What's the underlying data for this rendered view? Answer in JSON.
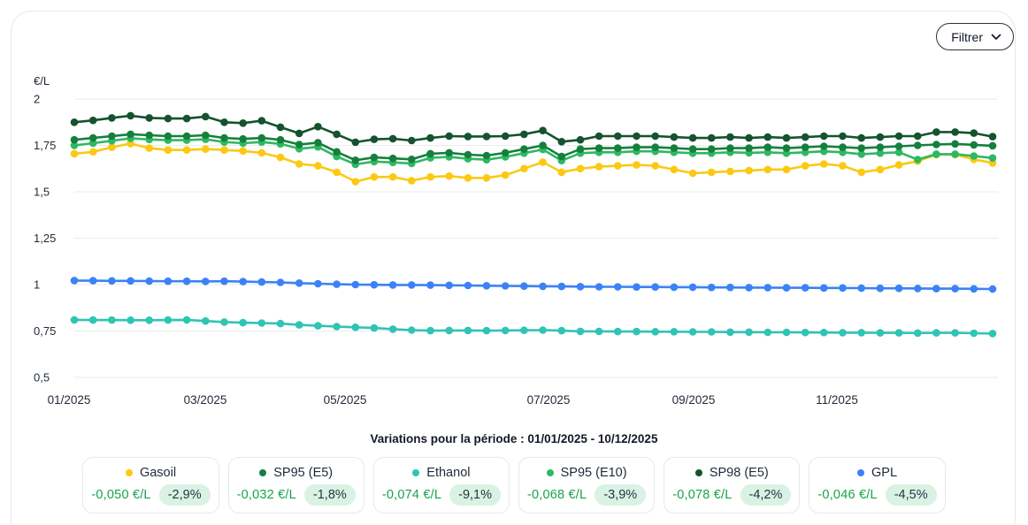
{
  "filter_button": {
    "label": "Filtrer"
  },
  "chart": {
    "y_axis_unit": "€/L",
    "y_ticks": [
      "2",
      "1,75",
      "1,5",
      "1,25",
      "1",
      "0,75",
      "0,5"
    ],
    "y_tick_values": [
      2,
      1.75,
      1.5,
      1.25,
      1,
      0.75,
      0.5
    ],
    "x_ticks": [
      "01/2025",
      "03/2025",
      "05/2025",
      "07/2025",
      "09/2025",
      "11/2025"
    ],
    "caption": "Variations pour la période : 01/01/2025 - 10/12/2025"
  },
  "chart_data": {
    "type": "line",
    "title": "",
    "period": "01/01/2025 - 10/12/2025",
    "ylabel": "€/L",
    "ylim": [
      0.5,
      2
    ],
    "grid": true,
    "legend_position": "bottom",
    "x_unit": "weekly dates dd/mm of 2025",
    "x_tick_labels": [
      "01/2025",
      "03/2025",
      "05/2025",
      "07/2025",
      "09/2025",
      "11/2025"
    ],
    "x": [
      "01/01",
      "08/01",
      "15/01",
      "22/01",
      "29/01",
      "05/02",
      "12/02",
      "19/02",
      "26/02",
      "05/03",
      "12/03",
      "19/03",
      "26/03",
      "02/04",
      "09/04",
      "16/04",
      "23/04",
      "30/04",
      "07/05",
      "14/05",
      "21/05",
      "28/05",
      "04/06",
      "11/06",
      "18/06",
      "25/06",
      "02/07",
      "09/07",
      "16/07",
      "23/07",
      "30/07",
      "06/08",
      "13/08",
      "20/08",
      "27/08",
      "03/09",
      "10/09",
      "17/09",
      "24/09",
      "01/10",
      "08/10",
      "15/10",
      "22/10",
      "29/10",
      "05/11",
      "12/11",
      "19/11",
      "26/11",
      "03/12",
      "10/12"
    ],
    "series": [
      {
        "name": "Gasoil",
        "color": "#fbc913",
        "variation": "-0,050 €/L",
        "variation_pct": "-2,9%",
        "values": [
          1.705,
          1.715,
          1.74,
          1.76,
          1.735,
          1.725,
          1.725,
          1.73,
          1.725,
          1.72,
          1.71,
          1.685,
          1.65,
          1.64,
          1.605,
          1.555,
          1.58,
          1.58,
          1.56,
          1.58,
          1.585,
          1.575,
          1.575,
          1.59,
          1.625,
          1.66,
          1.605,
          1.625,
          1.635,
          1.64,
          1.645,
          1.64,
          1.62,
          1.6,
          1.605,
          1.61,
          1.615,
          1.62,
          1.62,
          1.64,
          1.65,
          1.64,
          1.605,
          1.62,
          1.645,
          1.665,
          1.7,
          1.7,
          1.675,
          1.655
        ]
      },
      {
        "name": "SP95 (E5)",
        "color": "#15803d",
        "variation": "-0,032 €/L",
        "variation_pct": "-1,8%",
        "values": [
          1.78,
          1.79,
          1.8,
          1.81,
          1.805,
          1.8,
          1.8,
          1.805,
          1.79,
          1.785,
          1.79,
          1.78,
          1.755,
          1.765,
          1.715,
          1.67,
          1.685,
          1.68,
          1.675,
          1.705,
          1.71,
          1.7,
          1.695,
          1.71,
          1.73,
          1.75,
          1.69,
          1.73,
          1.735,
          1.735,
          1.74,
          1.74,
          1.735,
          1.73,
          1.73,
          1.735,
          1.735,
          1.74,
          1.735,
          1.74,
          1.745,
          1.74,
          1.735,
          1.74,
          1.745,
          1.75,
          1.755,
          1.758,
          1.753,
          1.748
        ]
      },
      {
        "name": "Ethanol",
        "color": "#2fc4b4",
        "variation": "-0,074 €/L",
        "variation_pct": "-9,1%",
        "values": [
          0.81,
          0.809,
          0.809,
          0.808,
          0.808,
          0.809,
          0.81,
          0.804,
          0.798,
          0.795,
          0.793,
          0.79,
          0.783,
          0.778,
          0.774,
          0.77,
          0.766,
          0.76,
          0.755,
          0.752,
          0.753,
          0.753,
          0.752,
          0.753,
          0.754,
          0.755,
          0.752,
          0.748,
          0.748,
          0.747,
          0.747,
          0.746,
          0.746,
          0.745,
          0.745,
          0.744,
          0.744,
          0.743,
          0.743,
          0.742,
          0.742,
          0.741,
          0.741,
          0.74,
          0.74,
          0.739,
          0.74,
          0.74,
          0.738,
          0.736
        ]
      },
      {
        "name": "SP95 (E10)",
        "color": "#2eb862",
        "variation": "-0,068 €/L",
        "variation_pct": "-3,9%",
        "values": [
          1.75,
          1.762,
          1.775,
          1.788,
          1.782,
          1.778,
          1.778,
          1.783,
          1.768,
          1.762,
          1.768,
          1.758,
          1.732,
          1.742,
          1.69,
          1.648,
          1.663,
          1.658,
          1.653,
          1.683,
          1.688,
          1.678,
          1.673,
          1.688,
          1.708,
          1.728,
          1.668,
          1.708,
          1.713,
          1.713,
          1.718,
          1.718,
          1.713,
          1.708,
          1.708,
          1.713,
          1.71,
          1.713,
          1.708,
          1.713,
          1.718,
          1.713,
          1.703,
          1.708,
          1.713,
          1.674,
          1.703,
          1.703,
          1.693,
          1.682
        ]
      },
      {
        "name": "SP98 (E5)",
        "color": "#14532d",
        "variation": "-0,078 €/L",
        "variation_pct": "-4,2%",
        "values": [
          1.875,
          1.885,
          1.898,
          1.91,
          1.898,
          1.895,
          1.895,
          1.905,
          1.875,
          1.87,
          1.883,
          1.848,
          1.815,
          1.851,
          1.81,
          1.767,
          1.783,
          1.786,
          1.776,
          1.79,
          1.8,
          1.798,
          1.798,
          1.8,
          1.81,
          1.83,
          1.77,
          1.78,
          1.8,
          1.8,
          1.8,
          1.8,
          1.795,
          1.79,
          1.79,
          1.795,
          1.79,
          1.795,
          1.79,
          1.795,
          1.8,
          1.8,
          1.79,
          1.795,
          1.8,
          1.8,
          1.822,
          1.822,
          1.816,
          1.797
        ]
      },
      {
        "name": "GPL",
        "color": "#3b82f6",
        "variation": "-0,046 €/L",
        "variation_pct": "-4,5%",
        "values": [
          1.022,
          1.021,
          1.02,
          1.02,
          1.019,
          1.018,
          1.018,
          1.017,
          1.018,
          1.016,
          1.014,
          1.012,
          1.008,
          1.005,
          1.002,
          1.0,
          0.999,
          0.998,
          0.998,
          0.997,
          0.996,
          0.995,
          0.994,
          0.993,
          0.992,
          0.991,
          0.99,
          0.989,
          0.988,
          0.988,
          0.987,
          0.987,
          0.986,
          0.986,
          0.985,
          0.985,
          0.984,
          0.984,
          0.983,
          0.983,
          0.982,
          0.982,
          0.981,
          0.98,
          0.98,
          0.979,
          0.978,
          0.978,
          0.977,
          0.976
        ]
      }
    ]
  }
}
